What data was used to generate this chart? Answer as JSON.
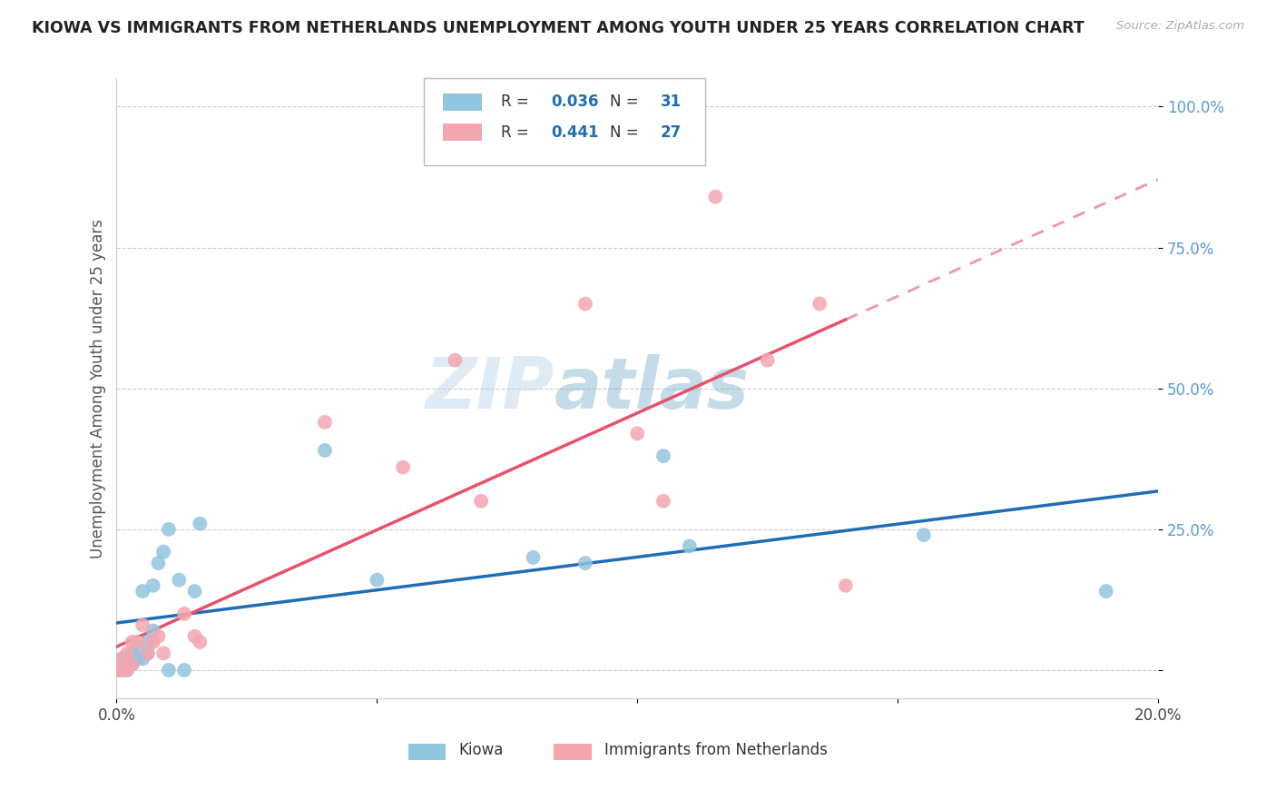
{
  "title": "KIOWA VS IMMIGRANTS FROM NETHERLANDS UNEMPLOYMENT AMONG YOUTH UNDER 25 YEARS CORRELATION CHART",
  "source": "Source: ZipAtlas.com",
  "ylabel": "Unemployment Among Youth under 25 years",
  "label_kiowa": "Kiowa",
  "label_netherlands": "Immigrants from Netherlands",
  "xlim": [
    0.0,
    0.2
  ],
  "ylim": [
    -0.05,
    1.05
  ],
  "yticks": [
    0.0,
    0.25,
    0.5,
    0.75,
    1.0
  ],
  "ytick_labels": [
    "",
    "25.0%",
    "50.0%",
    "75.0%",
    "100.0%"
  ],
  "xticks": [
    0.0,
    0.05,
    0.1,
    0.15,
    0.2
  ],
  "xtick_labels": [
    "0.0%",
    "",
    "",
    "",
    "20.0%"
  ],
  "color_kiowa": "#92c5de",
  "color_netherlands": "#f4a6b0",
  "line_color_kiowa": "#1f6eb5",
  "line_color_netherlands": "#e8516a",
  "watermark_zip": "ZIP",
  "watermark_atlas": "atlas",
  "legend_r1": "0.036",
  "legend_n1": "31",
  "legend_r2": "0.441",
  "legend_n2": "27",
  "kiowa_x": [
    0.0,
    0.001,
    0.001,
    0.002,
    0.002,
    0.003,
    0.003,
    0.004,
    0.004,
    0.005,
    0.005,
    0.006,
    0.006,
    0.007,
    0.007,
    0.008,
    0.009,
    0.01,
    0.01,
    0.012,
    0.013,
    0.015,
    0.016,
    0.04,
    0.05,
    0.08,
    0.09,
    0.105,
    0.11,
    0.155,
    0.19
  ],
  "kiowa_y": [
    0.0,
    0.0,
    0.02,
    0.0,
    0.02,
    0.01,
    0.03,
    0.02,
    0.04,
    0.02,
    0.14,
    0.03,
    0.05,
    0.07,
    0.15,
    0.19,
    0.21,
    0.25,
    0.0,
    0.16,
    0.0,
    0.14,
    0.26,
    0.39,
    0.16,
    0.2,
    0.19,
    0.38,
    0.22,
    0.24,
    0.14
  ],
  "netherlands_x": [
    0.0,
    0.001,
    0.001,
    0.002,
    0.002,
    0.003,
    0.003,
    0.004,
    0.005,
    0.006,
    0.007,
    0.008,
    0.009,
    0.013,
    0.015,
    0.016,
    0.04,
    0.055,
    0.065,
    0.07,
    0.09,
    0.1,
    0.105,
    0.115,
    0.125,
    0.135,
    0.14
  ],
  "netherlands_y": [
    0.0,
    0.0,
    0.02,
    0.0,
    0.03,
    0.01,
    0.05,
    0.05,
    0.08,
    0.03,
    0.05,
    0.06,
    0.03,
    0.1,
    0.06,
    0.05,
    0.44,
    0.36,
    0.55,
    0.3,
    0.65,
    0.42,
    0.3,
    0.84,
    0.55,
    0.65,
    0.15
  ]
}
